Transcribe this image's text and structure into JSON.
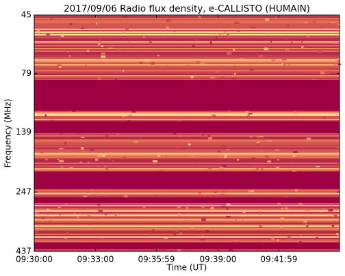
{
  "chart_data": {
    "type": "heatmap",
    "title": "2017/09/06  Radio flux density, e-CALLISTO (HUMAIN)",
    "xlabel": "Time (UT)",
    "ylabel": "Frequency (MHz)",
    "xlim": [
      34200,
      35097
    ],
    "xticks": [
      {
        "value": 34200,
        "label": "09:30:00"
      },
      {
        "value": 34380,
        "label": "09:33:00"
      },
      {
        "value": 34559,
        "label": "09:35:59"
      },
      {
        "value": 34740,
        "label": "09:39:00"
      },
      {
        "value": 34919,
        "label": "09:41:59"
      }
    ],
    "ylim": [
      45,
      437
    ],
    "yticks": [
      45,
      79,
      139,
      247,
      437
    ],
    "y_log": true,
    "y_inverted": true,
    "saturated_bands": [
      [
        84,
        113
      ],
      [
        125,
        140
      ],
      [
        203,
        240
      ],
      [
        260,
        274
      ],
      [
        401,
        428
      ]
    ],
    "color": "#9e0142"
  }
}
